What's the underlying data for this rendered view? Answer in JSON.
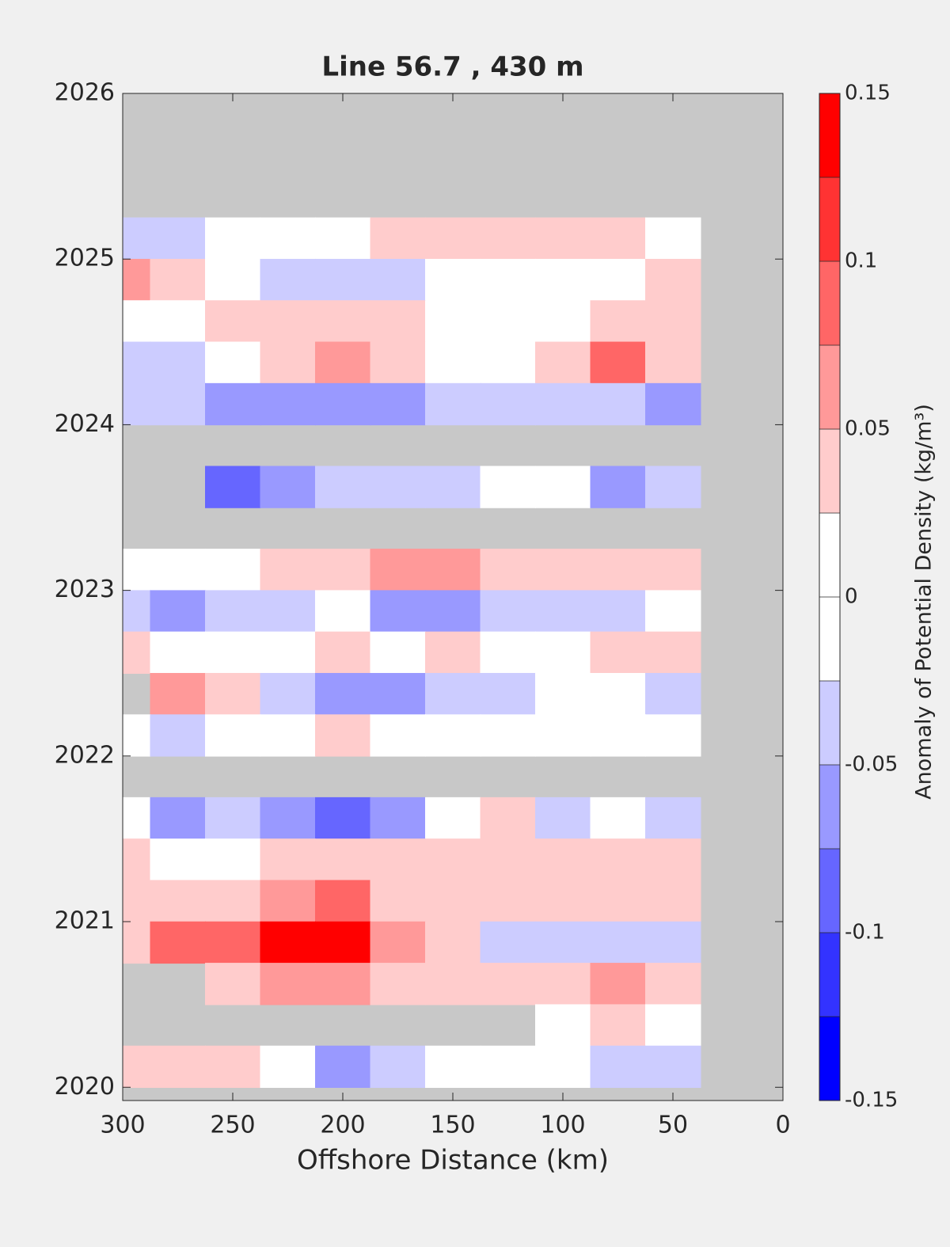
{
  "chart_data": {
    "type": "contour",
    "title": "Line 56.7 , 430 m",
    "xlabel": "Offshore Distance (km)",
    "colorbar_label": "Anomaly of Potential Density (kg/m³)",
    "x": [
      300,
      275,
      250,
      225,
      200,
      175,
      150,
      125,
      100,
      75,
      50
    ],
    "y": [
      2025.125,
      2024.875,
      2024.625,
      2024.375,
      2024.125,
      2023.875,
      2023.625,
      2023.375,
      2023.125,
      2022.875,
      2022.625,
      2022.375,
      2022.125,
      2021.875,
      2021.625,
      2021.375,
      2021.125,
      2020.875,
      2020.625,
      2020.375,
      2020.125
    ],
    "z": [
      [
        -0.04,
        -0.03,
        0,
        0,
        0,
        0.03,
        0.03,
        0.03,
        0.03,
        0.03,
        0
      ],
      [
        0.07,
        0.05,
        0,
        -0.03,
        -0.04,
        -0.03,
        0,
        0,
        0,
        0,
        0.04
      ],
      [
        0,
        0,
        0.03,
        0.03,
        0.03,
        0.03,
        0,
        0,
        0,
        0.03,
        0.03
      ],
      [
        -0.03,
        -0.03,
        0,
        0.05,
        0.07,
        0.04,
        0,
        0,
        0.03,
        0.08,
        0.04
      ],
      [
        -0.04,
        -0.04,
        -0.06,
        -0.06,
        -0.05,
        -0.05,
        -0.04,
        -0.03,
        -0.03,
        -0.04,
        -0.06
      ],
      [
        null,
        null,
        null,
        null,
        null,
        null,
        null,
        null,
        null,
        null,
        null
      ],
      [
        null,
        null,
        -0.09,
        -0.07,
        -0.04,
        -0.03,
        -0.03,
        0,
        0,
        -0.05,
        -0.04
      ],
      [
        null,
        null,
        null,
        null,
        null,
        null,
        null,
        null,
        null,
        null,
        null
      ],
      [
        0,
        0,
        0,
        0.03,
        0.05,
        0.06,
        0.06,
        0.04,
        0.04,
        0.03,
        0.03
      ],
      [
        -0.03,
        -0.05,
        -0.03,
        -0.04,
        0,
        -0.05,
        -0.07,
        -0.04,
        -0.03,
        -0.03,
        0
      ],
      [
        0.03,
        0,
        0,
        0,
        0.03,
        0,
        0.03,
        0,
        0,
        0.03,
        0.03
      ],
      [
        null,
        0.06,
        0.03,
        -0.03,
        -0.05,
        -0.06,
        -0.04,
        -0.03,
        0,
        0,
        -0.03
      ],
      [
        0,
        -0.03,
        0,
        0,
        0.03,
        0,
        0,
        0,
        0,
        0,
        0
      ],
      [
        null,
        null,
        null,
        null,
        null,
        null,
        null,
        null,
        null,
        null,
        null
      ],
      [
        0,
        -0.06,
        -0.03,
        -0.05,
        -0.09,
        -0.05,
        0,
        0.03,
        -0.03,
        0,
        -0.04
      ],
      [
        0.03,
        0,
        0,
        0.03,
        0.03,
        0.04,
        0.04,
        0.04,
        0.03,
        0.03,
        0.03
      ],
      [
        0.03,
        0.04,
        0.05,
        0.07,
        0.08,
        0.05,
        0.04,
        0.03,
        0.03,
        0.03,
        0.04
      ],
      [
        0.05,
        0.09,
        0.08,
        0.14,
        0.14,
        0.07,
        0.03,
        -0.03,
        -0.03,
        -0.03,
        -0.04
      ],
      [
        null,
        null,
        0.05,
        0.07,
        0.06,
        0.05,
        0.04,
        0.03,
        0.03,
        0.06,
        0.05
      ],
      [
        null,
        null,
        null,
        null,
        null,
        null,
        null,
        null,
        0,
        0.03,
        0
      ],
      [
        0.03,
        0.04,
        0.03,
        0,
        -0.05,
        -0.04,
        0,
        0,
        0,
        -0.03,
        -0.04
      ]
    ],
    "xlim": [
      300,
      0
    ],
    "ylim": [
      2019.92,
      2026
    ],
    "xticks": [
      300,
      250,
      200,
      150,
      100,
      50,
      0
    ],
    "yticks": [
      2020,
      2021,
      2022,
      2023,
      2024,
      2025,
      2026
    ],
    "nodata_color": "#c8c8c8",
    "colorbar": {
      "levels": [
        -0.15,
        -0.125,
        -0.1,
        -0.075,
        -0.05,
        -0.025,
        0,
        0.025,
        0.05,
        0.075,
        0.1,
        0.125,
        0.15
      ],
      "colors": [
        "#0000ff",
        "#3333ff",
        "#6666ff",
        "#9999ff",
        "#ccccff",
        "#ffffff",
        "#ffffff",
        "#ffcccc",
        "#ff9999",
        "#ff6666",
        "#ff3333",
        "#ff0000"
      ],
      "ticks": [
        -0.15,
        -0.1,
        -0.05,
        0,
        0.05,
        0.1,
        0.15
      ]
    }
  }
}
